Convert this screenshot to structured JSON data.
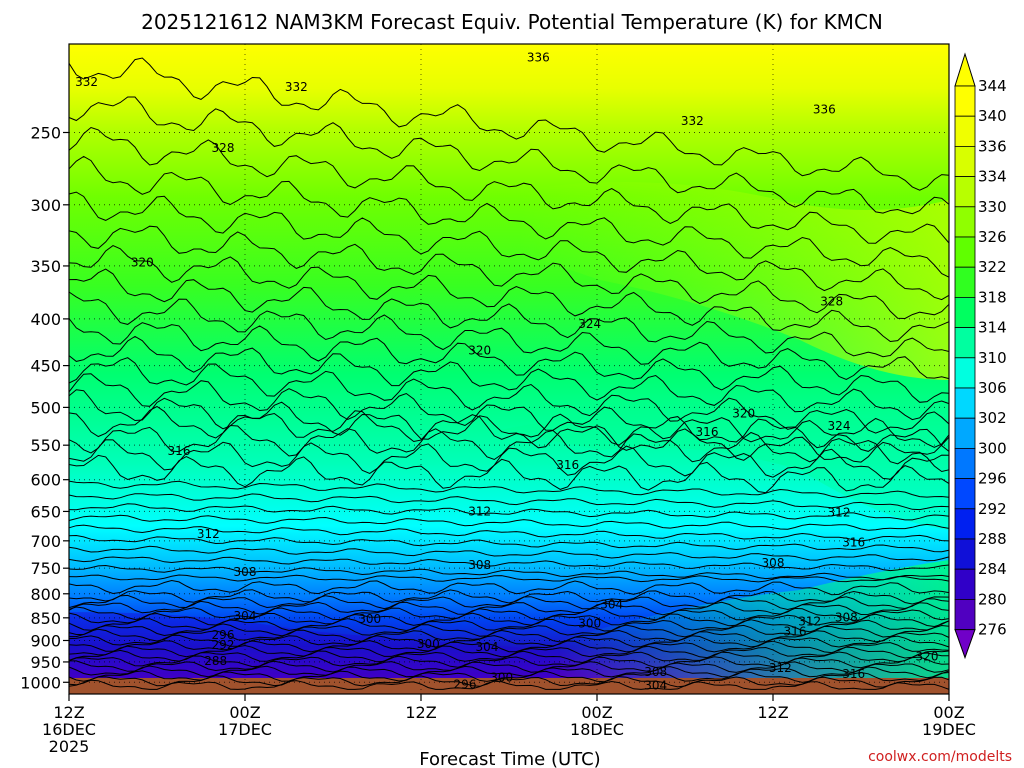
{
  "chart_data": {
    "type": "heatmap",
    "title": "2025121612 NAM3KM Forecast Equiv. Potential Temperature (K) for KMCN",
    "xlabel": "Forecast Time (UTC)",
    "ylabel": "",
    "x_ticks": [
      {
        "value": 0,
        "line1": "12Z",
        "line2": "16DEC",
        "line3": "2025"
      },
      {
        "value": 12,
        "line1": "00Z",
        "line2": "17DEC",
        "line3": ""
      },
      {
        "value": 24,
        "line1": "12Z",
        "line2": "",
        "line3": ""
      },
      {
        "value": 36,
        "line1": "00Z",
        "line2": "18DEC",
        "line3": ""
      },
      {
        "value": 48,
        "line1": "12Z",
        "line2": "",
        "line3": ""
      },
      {
        "value": 60,
        "line1": "00Z",
        "line2": "19DEC",
        "line3": ""
      }
    ],
    "x_range_hours": [
      0,
      60
    ],
    "y_scale": "log",
    "y_range_hpa": [
      1030,
      200
    ],
    "y_ticks": [
      250,
      300,
      350,
      400,
      450,
      500,
      550,
      600,
      650,
      700,
      750,
      800,
      850,
      900,
      950,
      1000
    ],
    "grid": true,
    "colorbar_levels": [
      344,
      340,
      336,
      334,
      330,
      326,
      322,
      318,
      314,
      310,
      306,
      302,
      300,
      296,
      292,
      288,
      284,
      280,
      276
    ],
    "colorbar_colors": [
      "#ffff00",
      "#f0ff00",
      "#d8ff00",
      "#b8ff00",
      "#90ff00",
      "#60ff00",
      "#30ff20",
      "#00ff60",
      "#00ffa0",
      "#00ffe0",
      "#00d8ff",
      "#00a8ff",
      "#0078ff",
      "#0048ff",
      "#0020f0",
      "#1010d8",
      "#3000c8",
      "#5000c0",
      "#7000c8"
    ],
    "contour_labels": [
      {
        "t": 32.0,
        "p": 207,
        "k": "336"
      },
      {
        "t": 1.2,
        "p": 220,
        "k": "332"
      },
      {
        "t": 15.5,
        "p": 223,
        "k": "332"
      },
      {
        "t": 42.5,
        "p": 243,
        "k": "332"
      },
      {
        "t": 51.5,
        "p": 236,
        "k": "336"
      },
      {
        "t": 10.5,
        "p": 260,
        "k": "328"
      },
      {
        "t": 5.0,
        "p": 347,
        "k": "320"
      },
      {
        "t": 35.5,
        "p": 405,
        "k": "324"
      },
      {
        "t": 52.0,
        "p": 383,
        "k": "328"
      },
      {
        "t": 28.0,
        "p": 433,
        "k": "320"
      },
      {
        "t": 46.0,
        "p": 508,
        "k": "320"
      },
      {
        "t": 52.5,
        "p": 524,
        "k": "324"
      },
      {
        "t": 7.5,
        "p": 558,
        "k": "316"
      },
      {
        "t": 43.5,
        "p": 532,
        "k": "316"
      },
      {
        "t": 34.0,
        "p": 578,
        "k": "316"
      },
      {
        "t": 28.0,
        "p": 650,
        "k": "312"
      },
      {
        "t": 9.5,
        "p": 688,
        "k": "312"
      },
      {
        "t": 52.5,
        "p": 652,
        "k": "312"
      },
      {
        "t": 53.5,
        "p": 703,
        "k": "316"
      },
      {
        "t": 12.0,
        "p": 757,
        "k": "308"
      },
      {
        "t": 28.0,
        "p": 744,
        "k": "308"
      },
      {
        "t": 48.0,
        "p": 740,
        "k": "308"
      },
      {
        "t": 12.0,
        "p": 846,
        "k": "304"
      },
      {
        "t": 20.5,
        "p": 852,
        "k": "300"
      },
      {
        "t": 37.0,
        "p": 822,
        "k": "304"
      },
      {
        "t": 35.5,
        "p": 862,
        "k": "300"
      },
      {
        "t": 10.5,
        "p": 888,
        "k": "296"
      },
      {
        "t": 10.5,
        "p": 910,
        "k": "292"
      },
      {
        "t": 10.0,
        "p": 948,
        "k": "288"
      },
      {
        "t": 24.5,
        "p": 908,
        "k": "300"
      },
      {
        "t": 28.5,
        "p": 915,
        "k": "304"
      },
      {
        "t": 50.5,
        "p": 858,
        "k": "312"
      },
      {
        "t": 53.0,
        "p": 849,
        "k": "308"
      },
      {
        "t": 49.5,
        "p": 880,
        "k": "316"
      },
      {
        "t": 48.5,
        "p": 965,
        "k": "312"
      },
      {
        "t": 40.0,
        "p": 975,
        "k": "308"
      },
      {
        "t": 53.5,
        "p": 979,
        "k": "316"
      },
      {
        "t": 58.5,
        "p": 937,
        "k": "320"
      },
      {
        "t": 27.0,
        "p": 1005,
        "k": "296"
      },
      {
        "t": 29.5,
        "p": 988,
        "k": "300"
      },
      {
        "t": 40.0,
        "p": 1008,
        "k": "304"
      }
    ]
  },
  "credit": "coolwx.com/modelts"
}
